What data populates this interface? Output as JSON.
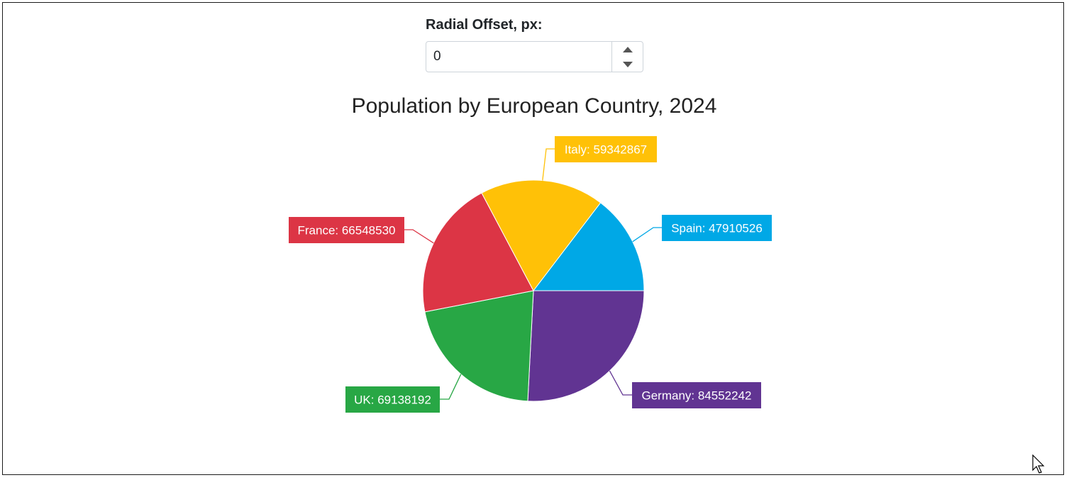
{
  "control": {
    "label": "Radial Offset, px:",
    "value": "0"
  },
  "chart_data": {
    "type": "pie",
    "title": "Population by European Country, 2024",
    "slices": [
      {
        "name": "Germany",
        "value": 84552242,
        "color": "#613492",
        "label": "Germany: 84552242"
      },
      {
        "name": "UK",
        "value": 69138192,
        "color": "#28a745",
        "label": "UK: 69138192"
      },
      {
        "name": "France",
        "value": 66548530,
        "color": "#dc3545",
        "label": "France: 66548530"
      },
      {
        "name": "Italy",
        "value": 59342867,
        "color": "#ffc107",
        "label": "Italy: 59342867"
      },
      {
        "name": "Spain",
        "value": 47910526,
        "color": "#00a8e6",
        "label": "Spain: 47910526"
      }
    ],
    "direction": "clockwise from 3 o'clock",
    "radial_offset": 0
  }
}
